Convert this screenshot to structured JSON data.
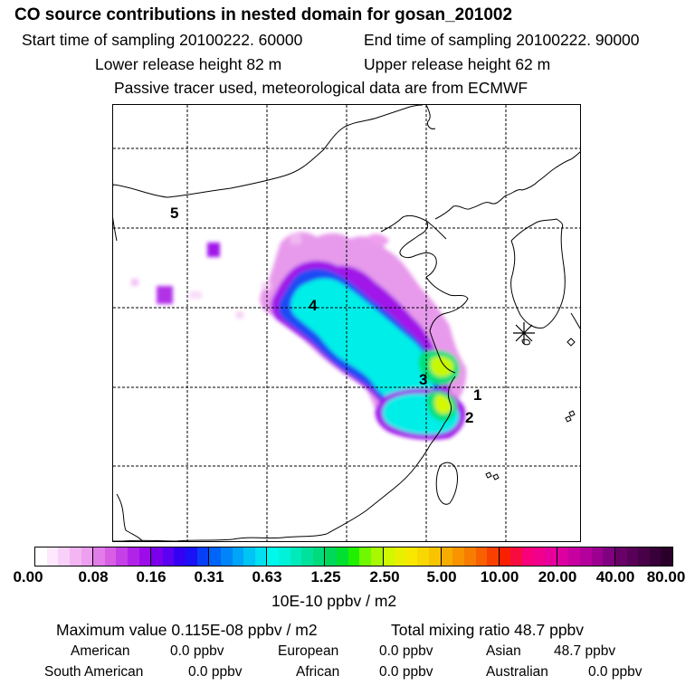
{
  "title": "CO  source contributions in nested domain for gosan_201002",
  "header": {
    "start_time": "Start time of sampling 20100222. 60000",
    "end_time": "End time of sampling 20100222. 90000",
    "lower_release": "Lower release height   82 m",
    "upper_release": "Upper release height   62 m",
    "note": "Passive tracer used, meteorological data are from ECMWF"
  },
  "map": {
    "labels": [
      "1",
      "2",
      "3",
      "4",
      "5"
    ],
    "receptor": "gosan-star-marker"
  },
  "colorbar": {
    "ticks": [
      "0.00",
      "0.08",
      "0.16",
      "0.31",
      "0.63",
      "1.25",
      "2.50",
      "5.00",
      "10.00",
      "20.00",
      "40.00",
      "80.00"
    ],
    "unit": "10E-10 ppbv / m2",
    "segments": [
      [
        "#ffffff",
        "#fde8fd",
        "#f8d0f8",
        "#f3b6f3",
        "#eca0ee"
      ],
      [
        "#e27ce8",
        "#d85ee6",
        "#c640e8",
        "#b223e9",
        "#9c0ce9"
      ],
      [
        "#7a00ec",
        "#5b00f0",
        "#3400f4",
        "#1a12f4",
        "#0640f6"
      ],
      [
        "#0064f8",
        "#0084f8",
        "#00a4f8",
        "#00c4f4",
        "#00e0f0"
      ],
      [
        "#00f8ec",
        "#00f2d8",
        "#00eabc",
        "#00e29c",
        "#00dc7c"
      ],
      [
        "#00d85a",
        "#00e030",
        "#20f000",
        "#70f800",
        "#a8f800"
      ],
      [
        "#d2f800",
        "#e8f000",
        "#f8e800",
        "#f8d800",
        "#f8c400"
      ],
      [
        "#f8ac00",
        "#f89400",
        "#f87c00",
        "#f86000",
        "#f84000"
      ],
      [
        "#f82000",
        "#f80c40",
        "#f8007c",
        "#f0008c",
        "#e8009c"
      ],
      [
        "#dc00a0",
        "#c800a0",
        "#b4009c",
        "#9c0090",
        "#800080"
      ],
      [
        "#680068",
        "#580058",
        "#480048",
        "#380038",
        "#2a002a"
      ]
    ]
  },
  "stats": {
    "max_value": "Maximum value  0.115E-08 ppbv / m2",
    "total_mixing": "Total mixing ratio      48.7 ppbv",
    "american_label": "American",
    "american_value": "0.0 ppbv",
    "european_label": "European",
    "european_value": "0.0 ppbv",
    "asian_label": "Asian",
    "asian_value": "48.7 ppbv",
    "south_american_label": "South American",
    "south_american_value": "0.0 ppbv",
    "african_label": "African",
    "african_value": "0.0 ppbv",
    "australian_label": "Australian",
    "australian_value": "0.0 ppbv"
  }
}
